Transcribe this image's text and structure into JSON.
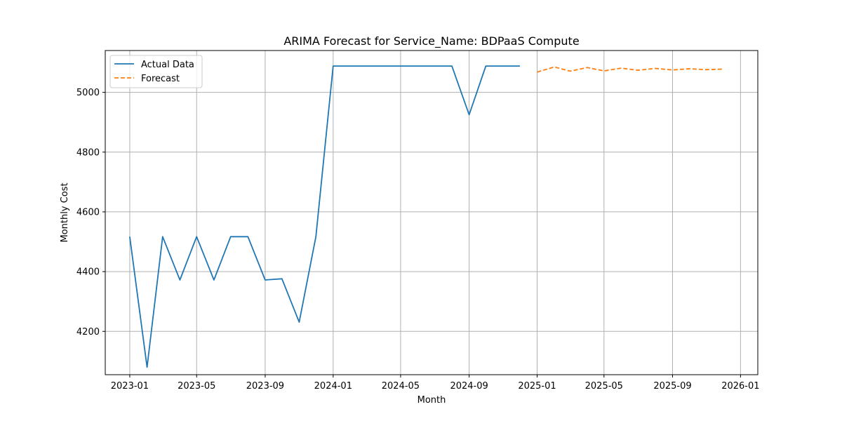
{
  "chart_data": {
    "type": "line",
    "title": "ARIMA Forecast for Service_Name: BDPaaS Compute",
    "xlabel": "Month",
    "ylabel": "Monthly Cost",
    "grid": true,
    "legend_position": "top-left",
    "x_range": [
      "2022-11-18",
      "2026-02-01"
    ],
    "ylim": [
      4055,
      5140
    ],
    "x_ticks": [
      "2023-01",
      "2023-05",
      "2023-09",
      "2024-01",
      "2024-05",
      "2024-09",
      "2025-01",
      "2025-05",
      "2025-09",
      "2026-01"
    ],
    "y_ticks": [
      4200,
      4400,
      4600,
      4800,
      5000
    ],
    "series": [
      {
        "name": "Actual Data",
        "color": "#1f77b4",
        "style": "solid",
        "x": [
          "2023-01-01",
          "2023-02-01",
          "2023-03-01",
          "2023-04-01",
          "2023-05-01",
          "2023-06-01",
          "2023-07-01",
          "2023-08-01",
          "2023-09-01",
          "2023-10-01",
          "2023-11-01",
          "2023-12-01",
          "2024-01-01",
          "2024-02-01",
          "2024-03-01",
          "2024-04-01",
          "2024-05-01",
          "2024-06-01",
          "2024-07-01",
          "2024-08-01",
          "2024-09-01",
          "2024-10-01",
          "2024-11-01",
          "2024-12-01"
        ],
        "values": [
          4517,
          4080,
          4517,
          4372,
          4517,
          4372,
          4517,
          4517,
          4372,
          4376,
          4231,
          4517,
          5088,
          5088,
          5088,
          5088,
          5088,
          5088,
          5088,
          5088,
          4925,
          5088,
          5088,
          5088
        ]
      },
      {
        "name": "Forecast",
        "color": "#ff7f0e",
        "style": "dashed",
        "x": [
          "2025-01-01",
          "2025-02-01",
          "2025-03-01",
          "2025-04-01",
          "2025-05-01",
          "2025-06-01",
          "2025-07-01",
          "2025-08-01",
          "2025-09-01",
          "2025-10-01",
          "2025-11-01",
          "2025-12-01"
        ],
        "values": [
          5068,
          5085,
          5071,
          5083,
          5072,
          5081,
          5074,
          5080,
          5075,
          5079,
          5076,
          5078
        ]
      }
    ]
  }
}
